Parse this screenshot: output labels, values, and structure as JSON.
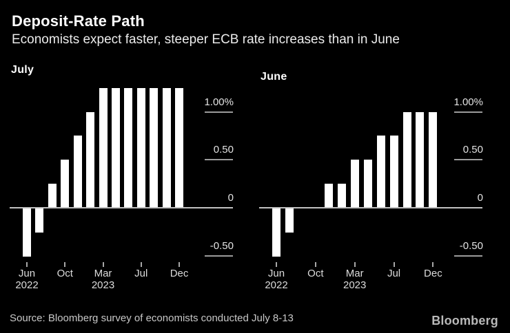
{
  "header": {
    "title": "Deposit-Rate Path",
    "subtitle": "Economists expect faster, steeper ECB rate increases than in June"
  },
  "footer": {
    "source": "Source: Bloomberg survey of economists conducted July 8-13",
    "logo": "Bloomberg"
  },
  "colors": {
    "background": "#000000",
    "bar": "#ffffff",
    "axis_line": "#c2c2c2",
    "grid_tick_line": "#9c9c9c",
    "title_text": "#ffffff",
    "subtitle_text": "#ececec",
    "axis_label_text": "#e3e3e3",
    "month_label_text": "#dcdcdc",
    "source_text": "#c8c8c8",
    "logo_text": "#b9b9b9"
  },
  "chart_data": [
    {
      "type": "bar",
      "title": "July",
      "unit": "%",
      "categories": [
        "Jun 2022",
        "Jul 2022",
        "Sep 2022",
        "Oct 2022",
        "Dec 2022",
        "Feb 2023",
        "Mar 2023",
        "May 2023",
        "Jun 2023",
        "Jul 2023",
        "Sep 2023",
        "Oct 2023",
        "Dec 2023"
      ],
      "values": [
        -0.5,
        -0.25,
        0.25,
        0.5,
        0.75,
        1.0,
        1.25,
        1.25,
        1.25,
        1.25,
        1.25,
        1.25,
        1.25
      ],
      "ylim": [
        -0.75,
        1.45
      ],
      "grid": false,
      "legend": "none",
      "yticks": [
        {
          "value": 1.0,
          "label": "1.00%"
        },
        {
          "value": 0.5,
          "label": "0.50"
        },
        {
          "value": 0.0,
          "label": "0"
        },
        {
          "value": -0.5,
          "label": "-0.50"
        }
      ],
      "xticks": [
        {
          "index": 0,
          "lines": [
            "Jun",
            "2022"
          ]
        },
        {
          "index": 3,
          "lines": [
            "Oct"
          ]
        },
        {
          "index": 6,
          "lines": [
            "Mar",
            "2023"
          ]
        },
        {
          "index": 9,
          "lines": [
            "Jul"
          ]
        },
        {
          "index": 12,
          "lines": [
            "Dec"
          ]
        }
      ]
    },
    {
      "type": "bar",
      "title": "June",
      "unit": "%",
      "categories": [
        "Jun 2022",
        "Jul 2022",
        "Sep 2022",
        "Oct 2022",
        "Dec 2022",
        "Feb 2023",
        "Mar 2023",
        "May 2023",
        "Jun 2023",
        "Jul 2023",
        "Sep 2023",
        "Oct 2023",
        "Dec 2023"
      ],
      "values": [
        -0.5,
        -0.25,
        0.0,
        0.0,
        0.25,
        0.25,
        0.5,
        0.5,
        0.75,
        0.75,
        1.0,
        1.0,
        1.0
      ],
      "ylim": [
        -0.75,
        1.45
      ],
      "grid": false,
      "legend": "none",
      "yticks": [
        {
          "value": 1.0,
          "label": "1.00%"
        },
        {
          "value": 0.5,
          "label": "0.50"
        },
        {
          "value": 0.0,
          "label": "0"
        },
        {
          "value": -0.5,
          "label": "-0.50"
        }
      ],
      "xticks": [
        {
          "index": 0,
          "lines": [
            "Jun",
            "2022"
          ]
        },
        {
          "index": 3,
          "lines": [
            "Oct"
          ]
        },
        {
          "index": 6,
          "lines": [
            "Mar",
            "2023"
          ]
        },
        {
          "index": 9,
          "lines": [
            "Jul"
          ]
        },
        {
          "index": 12,
          "lines": [
            "Dec"
          ]
        }
      ]
    }
  ]
}
